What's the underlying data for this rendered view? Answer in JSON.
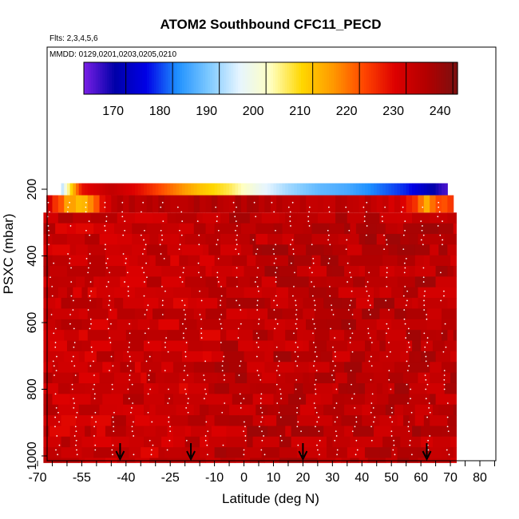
{
  "chart_data": {
    "type": "heatmap",
    "title": "ATOM2 Southbound CFC11_PECD",
    "flights_note": "Flts: 2,3,4,5,6",
    "dates_note": "MMDD: 0129,0201,0203,0205,0210",
    "xlabel": "Latitude (deg N)",
    "ylabel": "PSXC (mbar)",
    "xlim": [
      -70,
      87
    ],
    "ylim_reversed": [
      1020,
      0
    ],
    "x_ticks": [
      -70,
      -55,
      -40,
      -25,
      -10,
      0,
      10,
      20,
      30,
      40,
      50,
      60,
      70,
      80
    ],
    "y_ticks": [
      200,
      400,
      600,
      800,
      1000
    ],
    "colorbar": {
      "range": [
        161,
        241
      ],
      "tick_values": [
        170,
        180,
        190,
        200,
        210,
        220,
        230,
        240
      ],
      "colors": [
        "#7a1fe6",
        "#0000a8",
        "#0000e6",
        "#1e90ff",
        "#7cc8ff",
        "#e6f5ff",
        "#ffffc0",
        "#ffd700",
        "#ff9900",
        "#ff4500",
        "#dd0000",
        "#b30000",
        "#7a1010"
      ]
    },
    "tropopause_band": {
      "pressure_range": [
        182,
        218
      ],
      "points": [
        {
          "lat": -62,
          "value": 190
        },
        {
          "lat": -55,
          "value": 226
        },
        {
          "lat": -45,
          "value": 232
        },
        {
          "lat": -35,
          "value": 226
        },
        {
          "lat": -25,
          "value": 218
        },
        {
          "lat": -15,
          "value": 210
        },
        {
          "lat": -5,
          "value": 205
        },
        {
          "lat": 5,
          "value": 196
        },
        {
          "lat": 15,
          "value": 190
        },
        {
          "lat": 25,
          "value": 186
        },
        {
          "lat": 35,
          "value": 184
        },
        {
          "lat": 45,
          "value": 180
        },
        {
          "lat": 55,
          "value": 176
        },
        {
          "lat": 62,
          "value": 170
        },
        {
          "lat": 68,
          "value": 164
        }
      ]
    },
    "upper_layer": {
      "pressure_range": [
        218,
        270
      ],
      "points": [
        {
          "lat": -67,
          "value": 230
        },
        {
          "lat": -60,
          "value": 215
        },
        {
          "lat": -55,
          "value": 210
        },
        {
          "lat": -45,
          "value": 232
        },
        {
          "lat": -30,
          "value": 234
        },
        {
          "lat": -15,
          "value": 234
        },
        {
          "lat": 0,
          "value": 234
        },
        {
          "lat": 15,
          "value": 233
        },
        {
          "lat": 30,
          "value": 233
        },
        {
          "lat": 45,
          "value": 232
        },
        {
          "lat": 55,
          "value": 228
        },
        {
          "lat": 62,
          "value": 214
        },
        {
          "lat": 68,
          "value": 222
        }
      ]
    },
    "main_field": {
      "pressure_range": [
        270,
        1020
      ],
      "lat_range": [
        -68,
        72
      ],
      "mean_value": 233,
      "spread": 4
    },
    "sounding_arrows_lat": [
      -42,
      -18,
      20,
      62
    ]
  }
}
